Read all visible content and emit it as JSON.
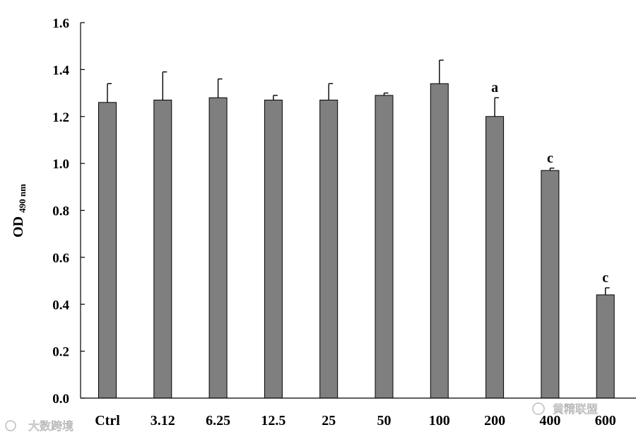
{
  "chart_data": {
    "type": "bar",
    "categories": [
      "Ctrl",
      "3.12",
      "6.25",
      "12.5",
      "25",
      "50",
      "100",
      "200",
      "400",
      "600"
    ],
    "values": [
      1.26,
      1.27,
      1.28,
      1.27,
      1.27,
      1.29,
      1.34,
      1.2,
      0.97,
      0.44
    ],
    "error": [
      0.08,
      0.12,
      0.08,
      0.02,
      0.07,
      0.01,
      0.1,
      0.08,
      0.01,
      0.03
    ],
    "significance": [
      "",
      "",
      "",
      "",
      "",
      "",
      "",
      "a",
      "c",
      "c"
    ],
    "bar_color": "#7f7f7f",
    "ylabel": "OD",
    "ylabel_subscript": "490 nm",
    "ylim": [
      0,
      1.6
    ],
    "yticks": [
      "0.0",
      "0.2",
      "0.4",
      "0.6",
      "0.8",
      "1.0",
      "1.2",
      "1.4",
      "1.6"
    ],
    "grid": false,
    "legend": "none"
  },
  "watermarks": {
    "left": "大数跨境",
    "right": "黄精联盟"
  }
}
